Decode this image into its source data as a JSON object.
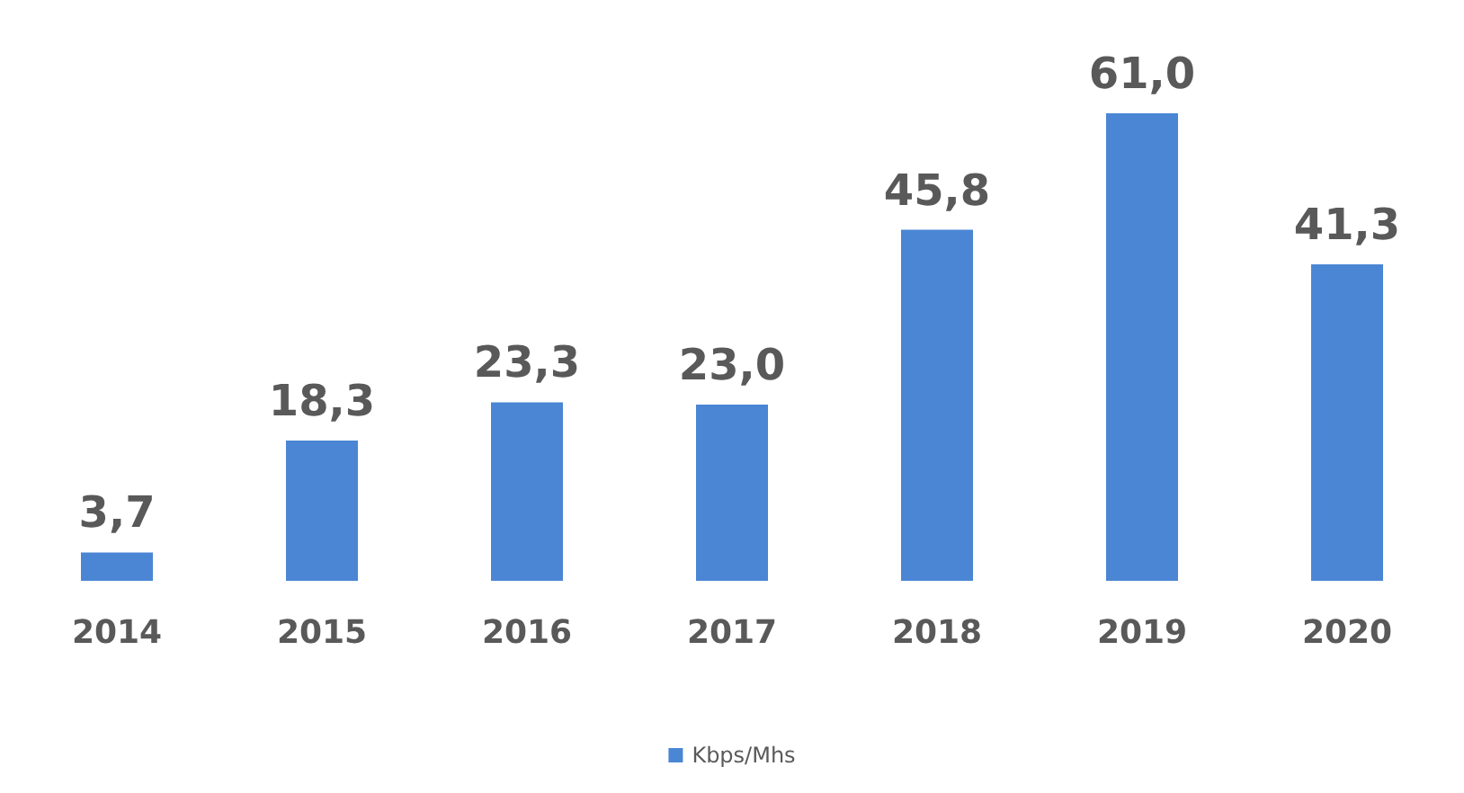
{
  "chart_data": {
    "type": "bar",
    "categories": [
      "2014",
      "2015",
      "2016",
      "2017",
      "2018",
      "2019",
      "2020"
    ],
    "series": [
      {
        "name": "Kbps/Mhs",
        "color": "#4a86d4",
        "values": [
          3.7,
          18.3,
          23.3,
          23.0,
          45.8,
          61.0,
          41.3
        ],
        "value_labels": [
          "3,7",
          "18,3",
          "23,3",
          "23,0",
          "45,8",
          "61,0",
          "41,3"
        ]
      }
    ],
    "legend": "bottom",
    "grid": false
  }
}
